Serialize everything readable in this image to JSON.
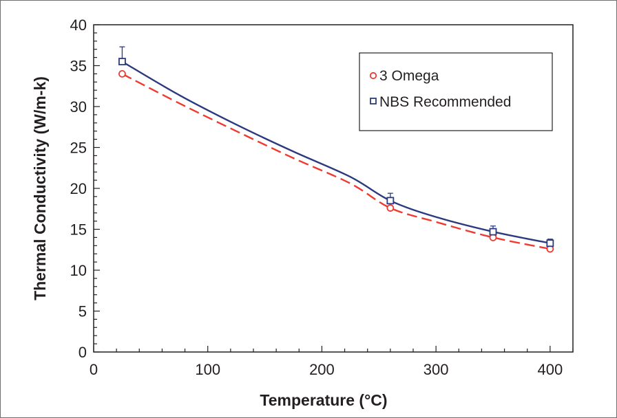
{
  "chart_data": {
    "type": "line",
    "title": "",
    "xlabel": "Temperature (°C)",
    "ylabel": "Thermal Conductivity (W/m-k)",
    "xlim": [
      0,
      420
    ],
    "ylim": [
      0,
      40
    ],
    "x_ticks": [
      0,
      100,
      200,
      300,
      400
    ],
    "y_ticks": [
      0,
      5,
      10,
      15,
      20,
      25,
      30,
      35,
      40
    ],
    "grid": false,
    "legend_position": "top-right",
    "series": [
      {
        "name": "3 Omega",
        "marker": "circle",
        "line_style": "dashed",
        "color": "#ee3a2f",
        "x": [
          25,
          260,
          350,
          400
        ],
        "y": [
          34.0,
          17.6,
          14.0,
          12.6
        ],
        "fit_curve": {
          "x": [
            25,
            75,
            125,
            175,
            225,
            260,
            300,
            350,
            400
          ],
          "y": [
            34.0,
            30.4,
            27.0,
            23.7,
            20.6,
            17.6,
            15.9,
            14.0,
            12.6
          ]
        }
      },
      {
        "name": "NBS Recommended",
        "marker": "square",
        "line_style": "solid",
        "color": "#2b3a7e",
        "x": [
          25,
          260,
          350,
          400
        ],
        "y": [
          35.5,
          18.5,
          14.7,
          13.3
        ],
        "error_plus": [
          1.8,
          0.9,
          0.7,
          0.5
        ],
        "error_minus": [
          0,
          0.9,
          0.7,
          0.5
        ],
        "fit_curve": {
          "x": [
            25,
            75,
            125,
            175,
            225,
            260,
            300,
            350,
            400
          ],
          "y": [
            35.5,
            31.4,
            27.8,
            24.5,
            21.4,
            18.5,
            16.5,
            14.7,
            13.3
          ]
        }
      }
    ]
  }
}
